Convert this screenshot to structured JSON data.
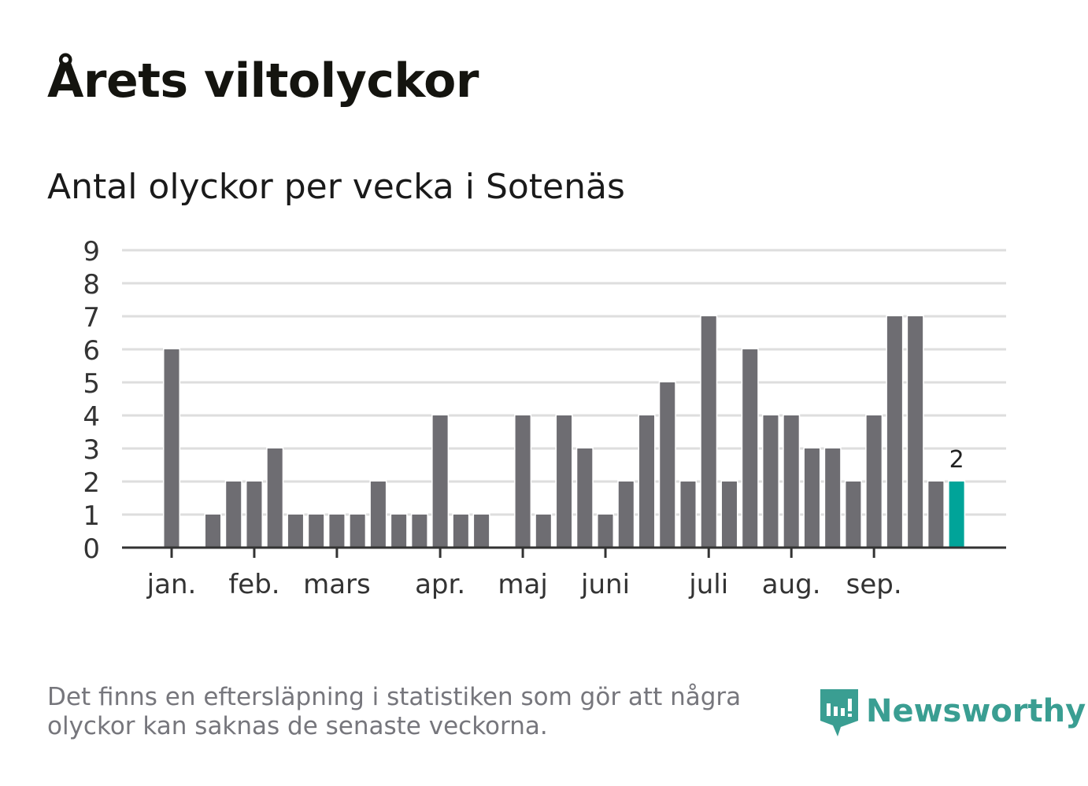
{
  "title": "Årets viltolyckor",
  "subtitle": "Antal olyckor per vecka i Sotenäs",
  "footnote": "Det finns en eftersläpning i statistiken som gör att några olyckor kan saknas de senaste veckorna.",
  "logo": "Newsworthy",
  "colors": {
    "bar": "#6e6d72",
    "highlight": "#00a499",
    "grid": "#dedede",
    "axis": "#333333"
  },
  "chart_data": {
    "type": "bar",
    "title": "Antal olyckor per vecka i Sotenäs",
    "xlabel": "",
    "ylabel": "",
    "ylim": [
      0,
      9
    ],
    "yticks": [
      0,
      1,
      2,
      3,
      4,
      5,
      6,
      7,
      8,
      9
    ],
    "weeks": [
      1,
      2,
      3,
      4,
      5,
      6,
      7,
      8,
      9,
      10,
      11,
      12,
      13,
      14,
      15,
      16,
      17,
      18,
      19,
      20,
      21,
      22,
      23,
      24,
      25,
      26,
      27,
      28,
      29,
      30,
      31,
      32,
      33,
      34,
      35,
      36,
      37,
      38,
      39
    ],
    "values": [
      6,
      0,
      1,
      2,
      2,
      3,
      1,
      1,
      1,
      1,
      2,
      1,
      1,
      4,
      1,
      1,
      0,
      4,
      1,
      4,
      3,
      1,
      2,
      4,
      5,
      2,
      7,
      2,
      6,
      4,
      4,
      3,
      3,
      2,
      4,
      7,
      7,
      2,
      2
    ],
    "highlight_index": 38,
    "highlight_label": "2",
    "month_ticks": [
      {
        "label": "jan.",
        "week": 1
      },
      {
        "label": "feb.",
        "week": 5
      },
      {
        "label": "mars",
        "week": 9
      },
      {
        "label": "apr.",
        "week": 14
      },
      {
        "label": "maj",
        "week": 18
      },
      {
        "label": "juni",
        "week": 22
      },
      {
        "label": "juli",
        "week": 27
      },
      {
        "label": "aug.",
        "week": 31
      },
      {
        "label": "sep.",
        "week": 35
      }
    ],
    "grid": true
  }
}
